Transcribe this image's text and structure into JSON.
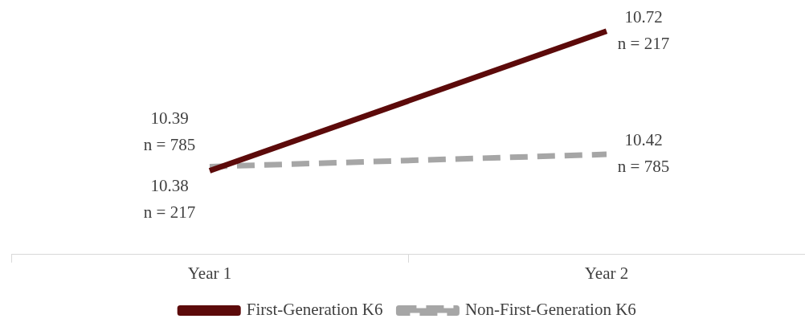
{
  "chart_data": {
    "type": "line",
    "categories": [
      "Year 1",
      "Year 2"
    ],
    "series": [
      {
        "name": "First-Generation K6",
        "color": "#5c0a0a",
        "values": [
          10.38,
          10.72
        ],
        "value_labels": [
          "10.38\nn = 217",
          "10.72\nn = 217"
        ],
        "line_style": "solid"
      },
      {
        "name": "Non-First-Generation K6",
        "color": "#a6a6a6",
        "values": [
          10.39,
          10.42
        ],
        "value_labels": [
          "10.39\nn = 785",
          "10.42\nn = 785"
        ],
        "line_style": "dashed"
      }
    ],
    "legend": "bottom",
    "marker": "none"
  }
}
